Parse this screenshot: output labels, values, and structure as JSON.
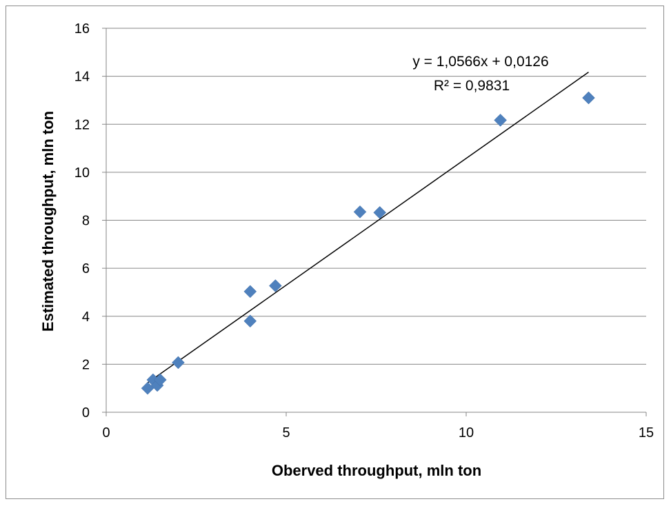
{
  "chart_data": {
    "type": "scatter",
    "title": "",
    "xlabel": "Oberved throughput, mln ton",
    "ylabel": "Estimated throughput, mln ton",
    "xlim": [
      0,
      15
    ],
    "ylim": [
      0,
      16
    ],
    "xticks": [
      0,
      5,
      10,
      15
    ],
    "yticks": [
      0,
      2,
      4,
      6,
      8,
      10,
      12,
      14,
      16
    ],
    "grid": "horizontal",
    "legend": "none",
    "marker_color": "#4f81bd",
    "series": [
      {
        "points": [
          {
            "x": 1.15,
            "y": 1.0
          },
          {
            "x": 1.3,
            "y": 1.35
          },
          {
            "x": 1.42,
            "y": 1.12
          },
          {
            "x": 1.5,
            "y": 1.35
          },
          {
            "x": 2.0,
            "y": 2.07
          },
          {
            "x": 4.0,
            "y": 5.03
          },
          {
            "x": 4.0,
            "y": 3.8
          },
          {
            "x": 4.7,
            "y": 5.27
          },
          {
            "x": 7.05,
            "y": 8.35
          },
          {
            "x": 7.6,
            "y": 8.32
          },
          {
            "x": 10.95,
            "y": 12.17
          },
          {
            "x": 13.4,
            "y": 13.1
          }
        ]
      }
    ],
    "trendline": {
      "type": "linear",
      "slope": 1.0566,
      "intercept": 0.0126,
      "x_range": [
        1.15,
        13.4
      ],
      "equation_label": "y = 1,0566x + 0,0126",
      "r2_label": "R² = 0,9831",
      "color": "#000000"
    }
  }
}
